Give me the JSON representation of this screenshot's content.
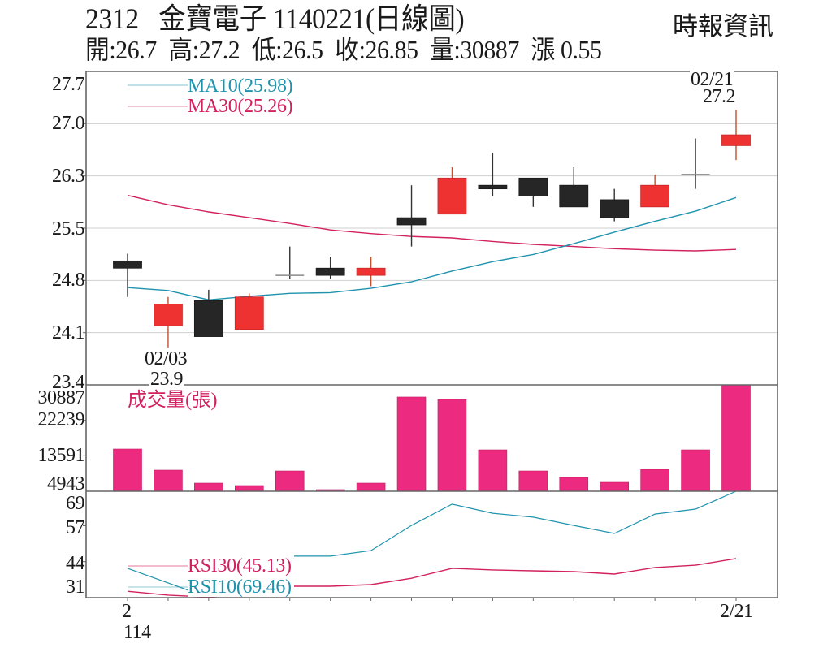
{
  "header": {
    "stock_code": "2312",
    "stock_name": "金寶電子",
    "date": "1140221",
    "chart_type": "(日線圖)",
    "quote": [
      {
        "label": "開:",
        "value": "26.7"
      },
      {
        "label": "高:",
        "value": "27.2"
      },
      {
        "label": "低:",
        "value": "26.5"
      },
      {
        "label": "收:",
        "value": "26.85"
      },
      {
        "label": "量:",
        "value": "30887"
      },
      {
        "label": "漲 ",
        "value": "0.55"
      }
    ],
    "source": "時報資訊"
  },
  "colors": {
    "up": "#ee3232",
    "up_wick": "#c0502f",
    "down": "#262626",
    "down_wick": "#333333",
    "doji": "#8a8a8a",
    "ma10": "#1f93ad",
    "ma30": "#d2215f",
    "volume": "#ec2a7f",
    "volume_edge": "#c41a63",
    "rsi10": "#1f93ad",
    "rsi30": "#d2215f",
    "grid": "#cfcfcf",
    "axis": "#666666"
  },
  "chart_data": {
    "type": "candlestick",
    "title": "2312 金寶電子 1140221(日線圖)",
    "candles": [
      {
        "o": 25.1,
        "h": 25.2,
        "l": 24.6,
        "c": 25.0
      },
      {
        "o": 24.2,
        "h": 24.6,
        "l": 23.9,
        "c": 24.5
      },
      {
        "o": 24.55,
        "h": 24.7,
        "l": 24.05,
        "c": 24.05
      },
      {
        "o": 24.15,
        "h": 24.65,
        "l": 24.15,
        "c": 24.6
      },
      {
        "o": 24.9,
        "h": 25.3,
        "l": 24.85,
        "c": 24.9
      },
      {
        "o": 25.0,
        "h": 25.15,
        "l": 24.85,
        "c": 24.9
      },
      {
        "o": 24.9,
        "h": 25.15,
        "l": 24.75,
        "c": 25.0
      },
      {
        "o": 25.7,
        "h": 26.15,
        "l": 25.3,
        "c": 25.6
      },
      {
        "o": 25.75,
        "h": 26.4,
        "l": 25.75,
        "c": 26.25
      },
      {
        "o": 26.15,
        "h": 26.6,
        "l": 26.0,
        "c": 26.1
      },
      {
        "o": 26.25,
        "h": 26.25,
        "l": 25.85,
        "c": 26.0
      },
      {
        "o": 26.15,
        "h": 26.4,
        "l": 25.85,
        "c": 25.85
      },
      {
        "o": 25.95,
        "h": 26.1,
        "l": 25.65,
        "c": 25.7
      },
      {
        "o": 25.85,
        "h": 26.3,
        "l": 25.85,
        "c": 26.15
      },
      {
        "o": 26.3,
        "h": 26.8,
        "l": 26.1,
        "c": 26.3
      },
      {
        "o": 26.7,
        "h": 27.2,
        "l": 26.5,
        "c": 26.85
      }
    ],
    "ma10": [
      24.73,
      24.69,
      24.56,
      24.61,
      24.65,
      24.66,
      24.72,
      24.81,
      24.96,
      25.09,
      25.19,
      25.34,
      25.5,
      25.65,
      25.79,
      25.98
    ],
    "ma30": [
      26.01,
      25.88,
      25.78,
      25.7,
      25.62,
      25.53,
      25.48,
      25.44,
      25.42,
      25.37,
      25.33,
      25.3,
      25.27,
      25.25,
      25.24,
      25.26
    ],
    "volume": [
      15240,
      10090,
      6920,
      6330,
      9890,
      5340,
      6920,
      27920,
      27320,
      15040,
      9890,
      8310,
      7120,
      10290,
      15040,
      30887
    ],
    "rsi10": [
      41.6,
      36.3,
      31.0,
      41.0,
      46.0,
      46.0,
      48.0,
      57.1,
      64.8,
      61.5,
      60.1,
      57.1,
      54.2,
      61.2,
      63.0,
      69.46
    ],
    "rsi30": [
      33.3,
      31.9,
      31.2,
      32.5,
      35.1,
      35.1,
      35.7,
      38.0,
      41.6,
      41.0,
      40.7,
      40.4,
      39.5,
      41.9,
      42.7,
      45.13
    ],
    "price_axis": {
      "ticks": [
        "27.7",
        "27.0",
        "26.3",
        "25.5",
        "24.8",
        "24.1",
        "23.4"
      ],
      "range": [
        23.38,
        27.73
      ],
      "grid": true
    },
    "volume_axis": {
      "title": "成交量(張)",
      "ticks": [
        "30887",
        "22239",
        "13591",
        "4943"
      ],
      "range": [
        4943,
        30887
      ]
    },
    "rsi_axis": {
      "ticks": [
        "69",
        "57",
        "44",
        "31"
      ],
      "range": [
        31,
        69.46
      ]
    },
    "legend": {
      "ma10": "MA10(25.98)",
      "ma30": "MA30(25.26)",
      "rsi30": "RSI30(45.13)",
      "rsi10": "RSI10(69.46)"
    },
    "annotations": {
      "high": {
        "date": "02/21",
        "value": "27.2"
      },
      "low": {
        "date": "02/03",
        "value": "23.9"
      }
    },
    "x_tick_labels": {
      "first_month": "2",
      "first_year": "114",
      "last_date": "2/21"
    }
  }
}
